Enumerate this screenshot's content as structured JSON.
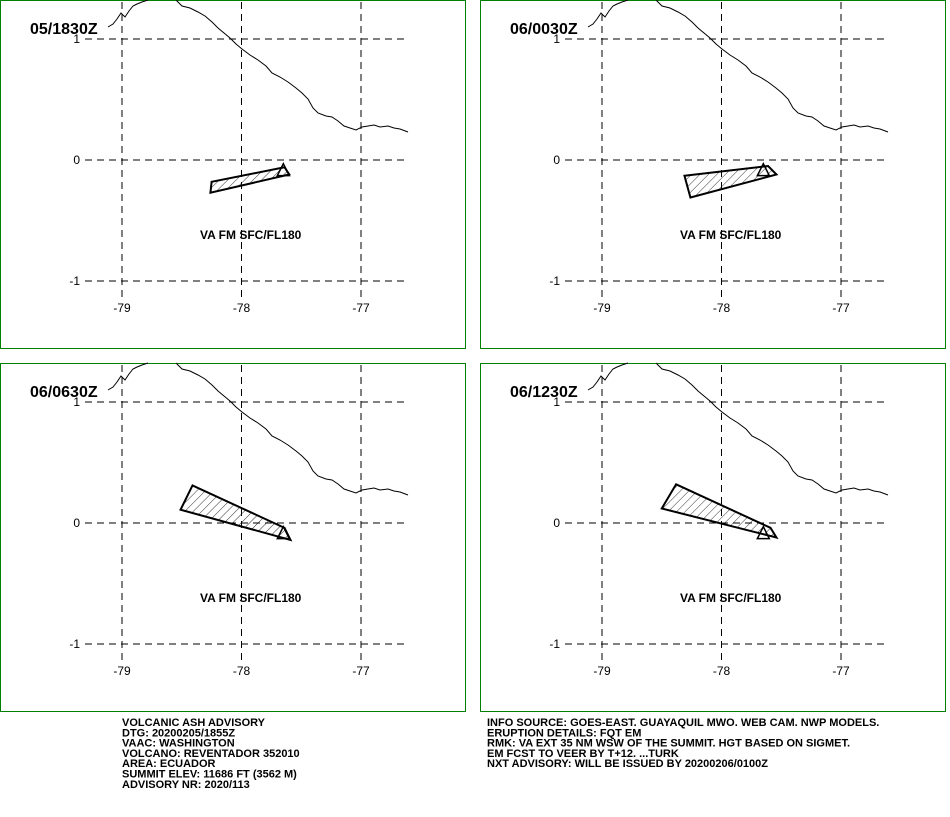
{
  "panels": [
    {
      "time": "05/1830Z",
      "label": "VA FM SFC/FL180",
      "polygon": [
        [
          -78.26,
          -0.27
        ],
        [
          -78.25,
          -0.18
        ],
        [
          -77.64,
          -0.06
        ],
        [
          -77.6,
          -0.12
        ]
      ]
    },
    {
      "time": "06/0030Z",
      "label": "VA FM SFC/FL180",
      "polygon": [
        [
          -78.31,
          -0.13
        ],
        [
          -77.61,
          -0.05
        ],
        [
          -77.54,
          -0.12
        ],
        [
          -78.26,
          -0.31
        ]
      ]
    },
    {
      "time": "06/0630Z",
      "label": "VA FM SFC/FL180",
      "polygon": [
        [
          -78.51,
          0.11
        ],
        [
          -78.41,
          0.31
        ],
        [
          -77.64,
          -0.04
        ],
        [
          -77.59,
          -0.14
        ]
      ]
    },
    {
      "time": "06/1230Z",
      "label": "VA FM SFC/FL180",
      "polygon": [
        [
          -78.5,
          0.12
        ],
        [
          -78.38,
          0.32
        ],
        [
          -77.59,
          -0.04
        ],
        [
          -77.54,
          -0.12
        ]
      ]
    }
  ],
  "vent": [
    -77.65,
    -0.08
  ],
  "xticks": [
    -79,
    -78,
    -77
  ],
  "yticks": [
    1,
    0,
    -1
  ],
  "advisory_left": [
    "VOLCANIC ASH ADVISORY",
    "DTG: 20200205/1855Z",
    "VAAC: WASHINGTON",
    "VOLCANO: REVENTADOR 352010",
    "AREA: ECUADOR",
    "SUMMIT ELEV: 11686 FT (3562 M)",
    "ADVISORY NR: 2020/113"
  ],
  "advisory_right": [
    "INFO SOURCE: GOES-EAST. GUAYAQUIL MWO. WEB CAM. NWP MODELS.",
    "ERUPTION DETAILS: FQT EM",
    "RMK: VA EXT 35 NM WSW OF THE SUMMIT. HGT BASED ON SIGMET.",
    "EM FCST TO VEER BY T+12. ...TURK",
    "NXT ADVISORY: WILL BE ISSUED BY 20200206/0100Z"
  ]
}
